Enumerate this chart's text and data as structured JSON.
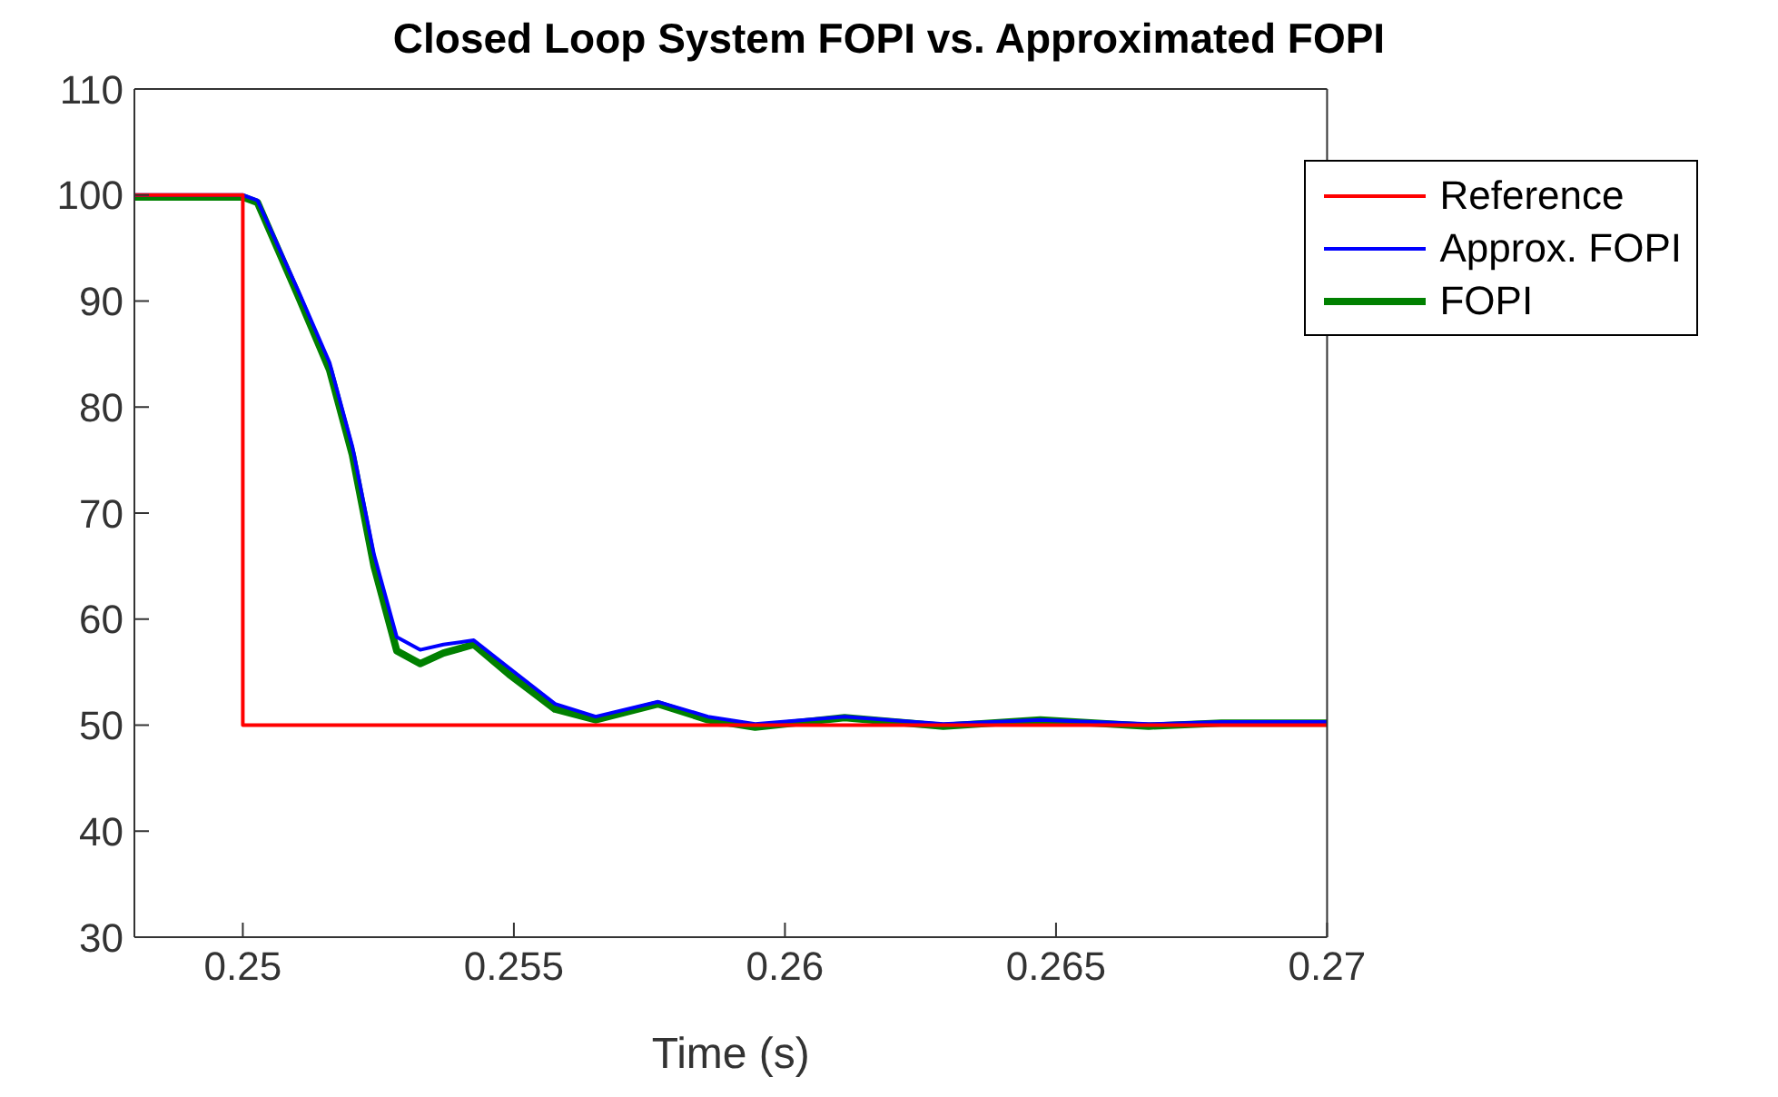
{
  "chart_data": {
    "type": "line",
    "title": "Closed Loop System FOPI vs. Approximated FOPI",
    "xlabel": "Time (s)",
    "xlim": [
      0.248,
      0.27
    ],
    "xticks": [
      0.25,
      0.255,
      0.26,
      0.265,
      0.27
    ],
    "ylim": [
      30,
      110
    ],
    "yticks": [
      30,
      40,
      50,
      60,
      70,
      80,
      90,
      100,
      110
    ],
    "grid": false,
    "legend": "top right",
    "marker": "none",
    "line_style": "solid",
    "series": [
      {
        "name": "Reference",
        "color": "#ff0000",
        "x": [
          0.248,
          0.25,
          0.25,
          0.27
        ],
        "values": [
          100,
          100,
          50,
          50
        ]
      },
      {
        "name": "Approx. FOPI",
        "color": "#0000ff",
        "x": [
          0.248,
          0.25,
          0.25027,
          0.25102,
          0.2516,
          0.25202,
          0.25242,
          0.25284,
          0.25327,
          0.2537,
          0.25426,
          0.25491,
          0.25576,
          0.25651,
          0.25766,
          0.25858,
          0.25945,
          0.2611,
          0.26292,
          0.26471,
          0.26671,
          0.26805,
          0.27
        ],
        "values": [
          100,
          100,
          99.5,
          91,
          84.2,
          76.3,
          66.1,
          58.3,
          57.1,
          57.6,
          58,
          55.4,
          52,
          50.8,
          52.2,
          50.8,
          50.1,
          50.8,
          50.1,
          50.5,
          50.1,
          50.3,
          50.3
        ]
      },
      {
        "name": "FOPI",
        "color": "#008000",
        "x": [
          0.248,
          0.25,
          0.25027,
          0.25102,
          0.2516,
          0.25202,
          0.25242,
          0.25284,
          0.25327,
          0.2537,
          0.25426,
          0.25491,
          0.25576,
          0.25651,
          0.25766,
          0.25858,
          0.25945,
          0.2611,
          0.26292,
          0.26471,
          0.26671,
          0.26805,
          0.27
        ],
        "values": [
          99.8,
          99.8,
          99.3,
          90.5,
          83.5,
          75.5,
          65,
          57,
          55.8,
          56.8,
          57.6,
          54.8,
          51.5,
          50.5,
          52,
          50.5,
          49.8,
          50.7,
          49.9,
          50.5,
          49.9,
          50.2,
          50.2
        ]
      }
    ]
  }
}
